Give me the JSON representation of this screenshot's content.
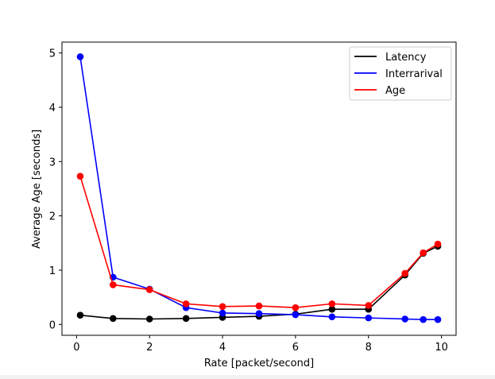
{
  "chart_data": {
    "type": "line",
    "title": "",
    "xlabel": "Rate [packet/second]",
    "ylabel": "Average Age [seconds]",
    "xlim": [
      -0.4,
      10.4
    ],
    "ylim": [
      -0.2,
      5.2
    ],
    "xticks": [
      "0",
      "2",
      "4",
      "6",
      "8",
      "10"
    ],
    "yticks": [
      "0",
      "1",
      "2",
      "3",
      "4",
      "5"
    ],
    "legend_position": "top-right",
    "grid": false,
    "x": [
      0.1,
      1,
      2,
      3,
      4,
      5,
      6,
      7,
      8,
      9,
      9.5,
      9.9
    ],
    "series": [
      {
        "name": "Latency",
        "color": "#000000",
        "values": [
          0.17,
          0.11,
          0.1,
          0.11,
          0.13,
          0.15,
          0.19,
          0.28,
          0.28,
          0.91,
          1.31,
          1.44
        ]
      },
      {
        "name": "Interrarival",
        "color": "#0000ff",
        "values": [
          4.93,
          0.87,
          0.65,
          0.31,
          0.21,
          0.2,
          0.18,
          0.14,
          0.12,
          0.1,
          0.09,
          0.09
        ]
      },
      {
        "name": "Age",
        "color": "#ff0000",
        "values": [
          2.73,
          0.73,
          0.64,
          0.38,
          0.33,
          0.34,
          0.31,
          0.38,
          0.35,
          0.94,
          1.32,
          1.48
        ]
      }
    ]
  }
}
